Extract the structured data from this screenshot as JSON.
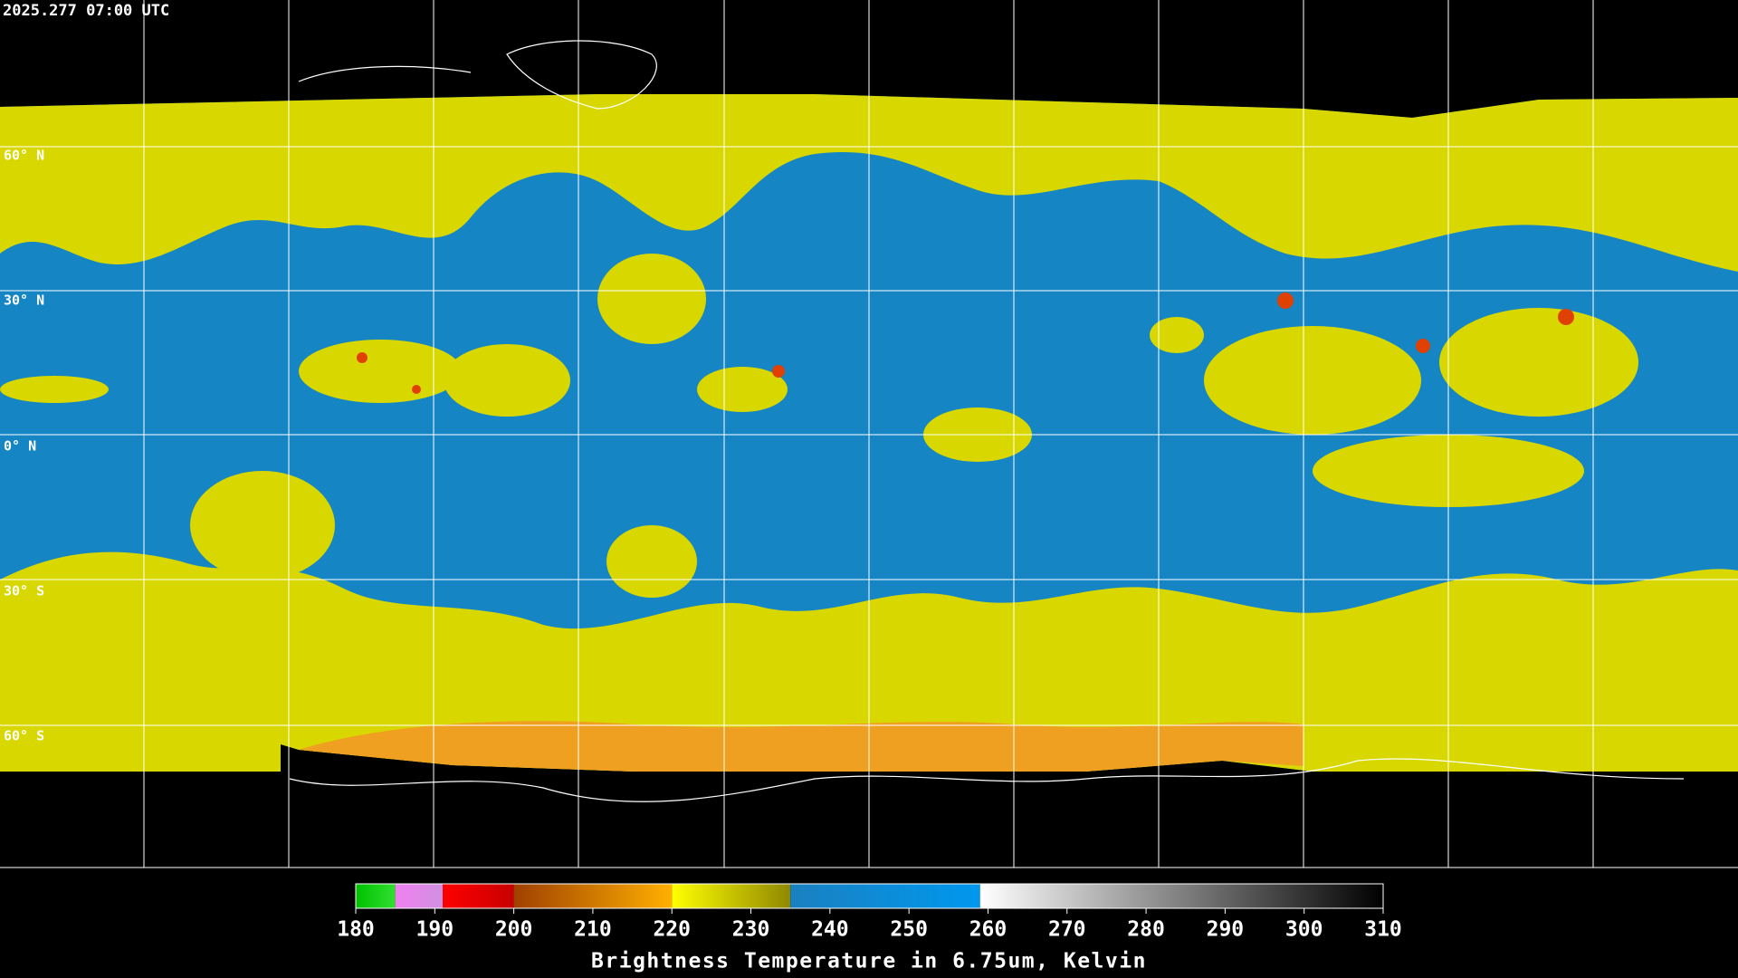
{
  "timestamp": "2025.277 07:00 UTC",
  "latitude_labels": [
    "60° N",
    "30° N",
    "0° N",
    "30° S",
    "60° S"
  ],
  "colorbar": {
    "title": "Brightness Temperature in 6.75um, Kelvin",
    "range": [
      180,
      310
    ],
    "ticks": [
      180,
      190,
      200,
      210,
      220,
      230,
      240,
      250,
      260,
      270,
      280,
      290,
      300,
      310
    ],
    "segments": [
      {
        "from": 180,
        "to": 185,
        "colors": [
          "#00c000",
          "#30e030"
        ]
      },
      {
        "from": 185,
        "to": 191,
        "colors": [
          "#f080f0",
          "#d090e0"
        ]
      },
      {
        "from": 191,
        "to": 200,
        "colors": [
          "#ff0000",
          "#c80000"
        ]
      },
      {
        "from": 200,
        "to": 220,
        "colors": [
          "#a04000",
          "#ffb000"
        ]
      },
      {
        "from": 220,
        "to": 235,
        "colors": [
          "#ffff00",
          "#908800"
        ]
      },
      {
        "from": 235,
        "to": 259,
        "colors": [
          "#1a80c0",
          "#0098ee"
        ]
      },
      {
        "from": 259,
        "to": 310,
        "colors": [
          "#ffffff",
          "#000000"
        ]
      }
    ]
  }
}
